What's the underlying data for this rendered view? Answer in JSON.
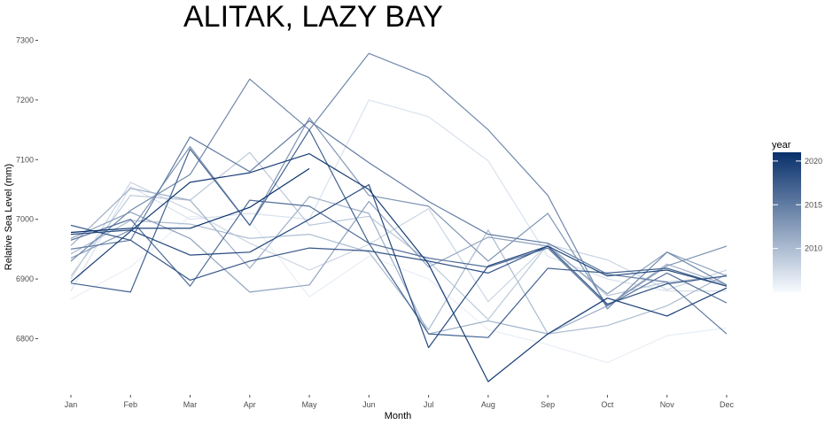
{
  "chart_data": {
    "type": "line",
    "title": "ALITAK, LAZY BAY",
    "xlabel": "Month",
    "ylabel": "Relative Sea Level (mm)",
    "categories": [
      "Jan",
      "Feb",
      "Mar",
      "Apr",
      "May",
      "Jun",
      "Jul",
      "Aug",
      "Sep",
      "Oct",
      "Nov",
      "Dec"
    ],
    "yticks": [
      6800,
      6900,
      7000,
      7100,
      7200,
      7300
    ],
    "ylim": [
      6725,
      7303
    ],
    "grid": false,
    "legend": {
      "title": "year",
      "position": "right",
      "type": "colorbar",
      "ticks": [
        2010,
        2015,
        2020
      ],
      "range": [
        2005,
        2021
      ],
      "low_color": "#f7fbff",
      "high_color": "#08306b"
    },
    "series": [
      {
        "year": 2006,
        "values": [
          6866,
          6920,
          7005,
          6998,
          6870,
          6938,
          6900,
          6815,
          6790,
          6760,
          6805,
          6818
        ]
      },
      {
        "year": 2007,
        "values": [
          6880,
          7055,
          7000,
          7010,
          7000,
          7200,
          7172,
          7098,
          6938,
          6900,
          6880,
          6880
        ]
      },
      {
        "year": 2008,
        "values": [
          6900,
          7062,
          7015,
          6960,
          6915,
          6958,
          7018,
          6862,
          6958,
          6932,
          6882,
          6915
        ]
      },
      {
        "year": 2009,
        "values": [
          6905,
          7040,
          7032,
          7112,
          6990,
          7005,
          6930,
          6832,
          6958,
          6872,
          6895,
          6905
        ]
      },
      {
        "year": 2010,
        "values": [
          6942,
          6998,
          6992,
          6968,
          6975,
          6945,
          6815,
          6982,
          6808,
          6822,
          6855,
          6908
        ]
      },
      {
        "year": 2011,
        "values": [
          6956,
          7052,
          7032,
          6918,
          7038,
          7010,
          6808,
          6830,
          6808,
          6855,
          6925,
          6890
        ]
      },
      {
        "year": 2012,
        "values": [
          6968,
          7012,
          6968,
          6878,
          6890,
          7030,
          6920,
          6970,
          6955,
          6875,
          6945,
          6905
        ]
      },
      {
        "year": 2013,
        "values": [
          6935,
          6982,
          7122,
          6990,
          7170,
          7040,
          7022,
          6930,
          7010,
          6855,
          6922,
          6955
        ]
      },
      {
        "year": 2014,
        "values": [
          6930,
          7015,
          7075,
          7235,
          7150,
          7278,
          7238,
          7150,
          7040,
          6850,
          6945,
          6890
        ]
      },
      {
        "year": 2015,
        "values": [
          6950,
          6965,
          7138,
          7080,
          7165,
          7095,
          7030,
          6975,
          6960,
          6908,
          6895,
          6808
        ]
      },
      {
        "year": 2016,
        "values": [
          6965,
          7000,
          6888,
          7032,
          7022,
          6960,
          6935,
          6920,
          6952,
          6855,
          6910,
          6860
        ]
      },
      {
        "year": 2017,
        "values": [
          6893,
          6878,
          7118,
          6990,
          7150,
          6960,
          6808,
          6802,
          6918,
          6910,
          6918,
          6888
        ]
      },
      {
        "year": 2018,
        "values": [
          6990,
          6965,
          6898,
          6930,
          6952,
          6947,
          6930,
          6910,
          6955,
          6858,
          6892,
          6905
        ]
      },
      {
        "year": 2019,
        "values": [
          6975,
          6982,
          6940,
          6945,
          7000,
          7058,
          6785,
          6922,
          6955,
          6905,
          6915,
          6888
        ]
      },
      {
        "year": 2020,
        "values": [
          6895,
          6980,
          7062,
          7078,
          7110,
          7050,
          6925,
          6728,
          6808,
          6868,
          6838,
          6885
        ]
      },
      {
        "year": 2021,
        "values": [
          6978,
          6985,
          6985,
          7020,
          7085,
          null,
          null,
          null,
          null,
          null,
          null,
          null
        ]
      }
    ]
  }
}
